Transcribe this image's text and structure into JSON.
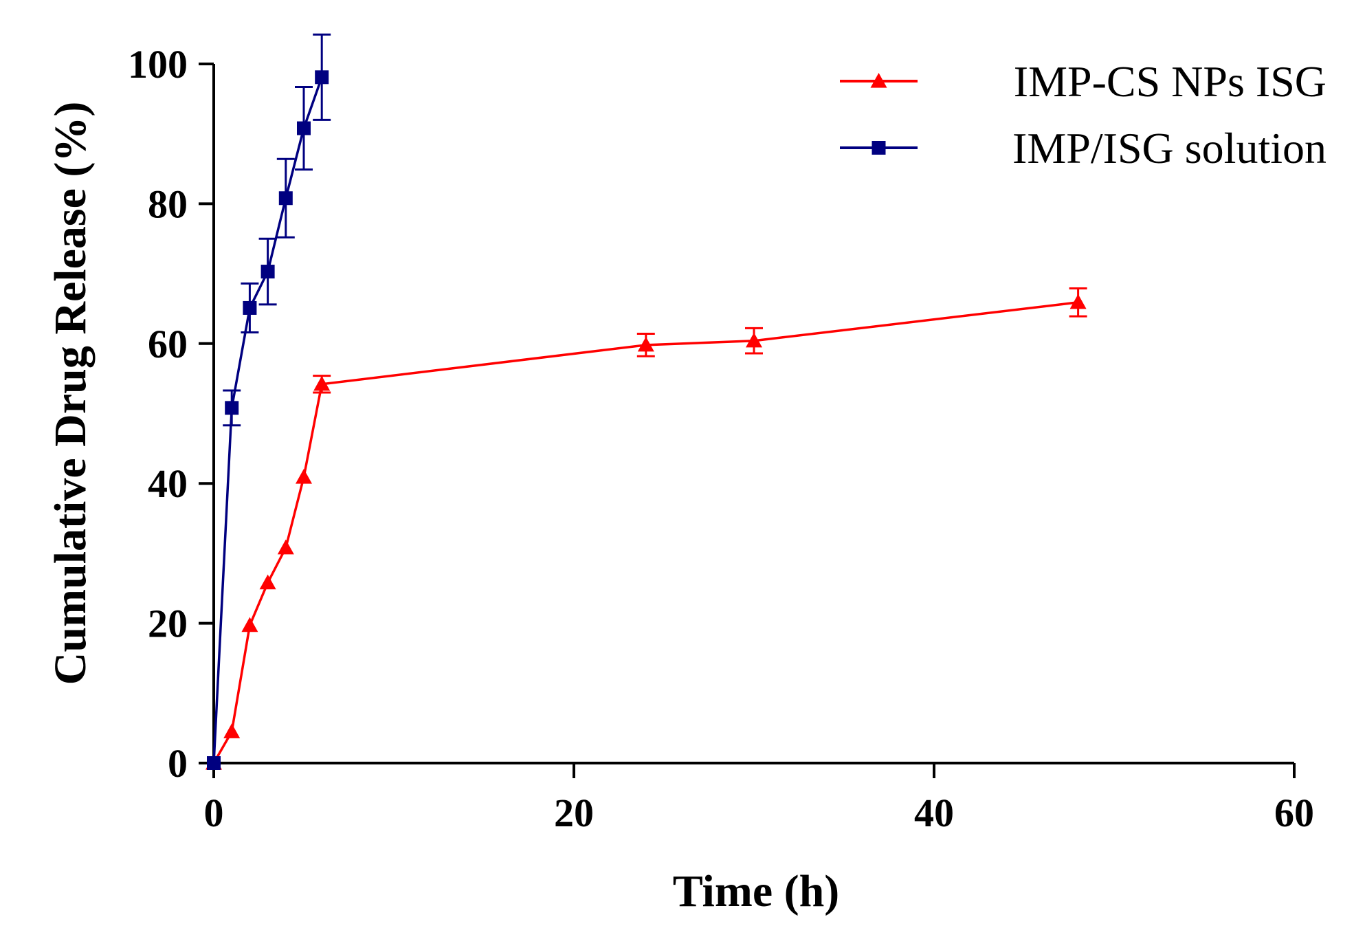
{
  "chart_data": {
    "type": "line",
    "title": "",
    "xlabel": "Time (h)",
    "ylabel": "Cumulative Drug Release (%)",
    "xlim": [
      0,
      60
    ],
    "ylim": [
      0,
      100
    ],
    "xticks": [
      0,
      20,
      40,
      60
    ],
    "yticks": [
      0,
      20,
      40,
      60,
      80,
      100
    ],
    "grid": false,
    "legend_position": "top-right",
    "series": [
      {
        "name": "IMP-CS NPs ISG",
        "color": "#ff0000",
        "marker": "triangle",
        "x": [
          0,
          1,
          2,
          3,
          4,
          5,
          6,
          24,
          30,
          48
        ],
        "y": [
          0,
          4.5,
          19.7,
          25.8,
          30.8,
          40.9,
          54.2,
          59.8,
          60.4,
          65.9
        ],
        "error": [
          0,
          0,
          0,
          0,
          0,
          0,
          1.2,
          1.6,
          1.8,
          2.0
        ]
      },
      {
        "name": "IMP/ISG solution",
        "color": "#000080",
        "marker": "square",
        "x": [
          0,
          1,
          2,
          3,
          4,
          5,
          6
        ],
        "y": [
          0,
          50.8,
          65.1,
          70.3,
          80.8,
          90.8,
          98.1
        ],
        "error": [
          0,
          2.5,
          3.5,
          4.7,
          5.6,
          5.9,
          6.1
        ]
      }
    ]
  }
}
